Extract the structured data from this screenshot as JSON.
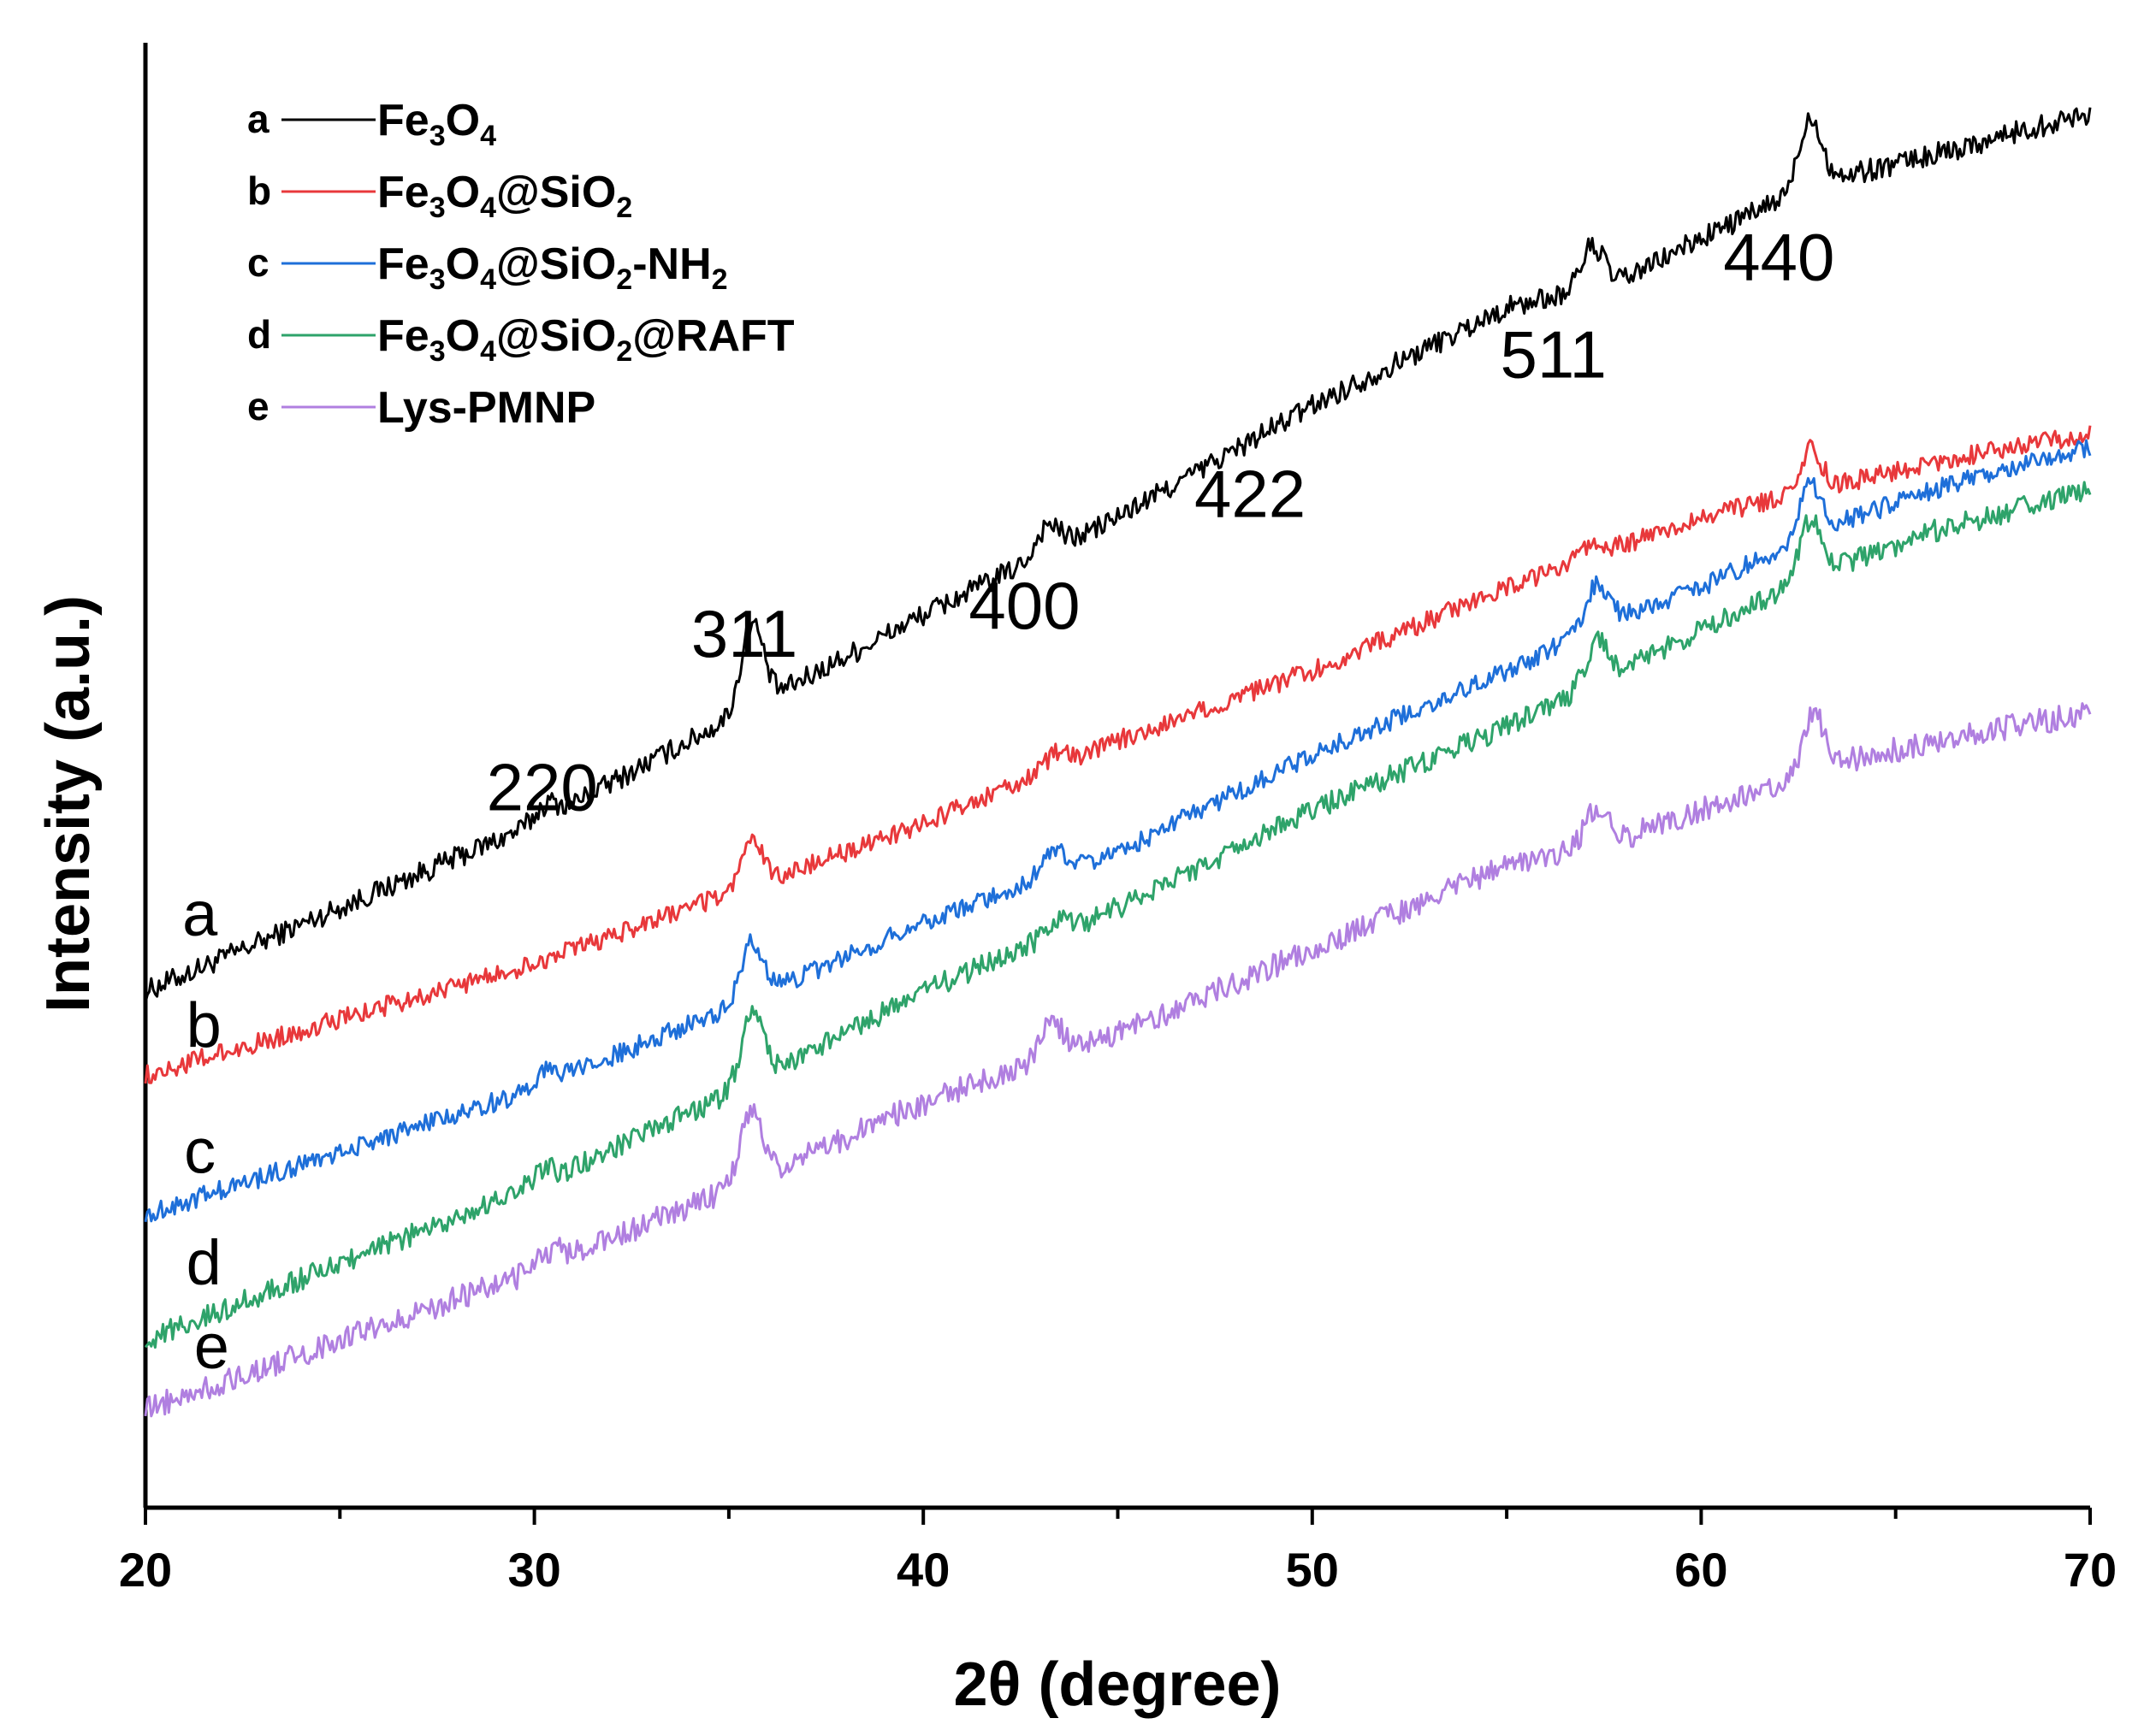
{
  "chart_data": {
    "type": "line",
    "title": "",
    "xlabel": "2θ (degree)",
    "ylabel": "Intensity (a.u.)",
    "xlim": [
      20,
      70
    ],
    "ylim": [
      0,
      105
    ],
    "x_ticks": [
      20,
      30,
      40,
      50,
      60,
      70
    ],
    "y_ticks_shown": false,
    "grid": false,
    "legend_position": "top-left",
    "series": [
      {
        "key": "a",
        "name": "Fe3O4",
        "color": "#000000",
        "legend": {
          "base": "Fe",
          "s1": "3",
          "mid": "O",
          "s2": "4",
          "rest": "",
          "s3": "",
          "tail": ""
        },
        "baseline": [
          [
            20,
            37
          ],
          [
            30,
            49
          ],
          [
            36,
            58
          ],
          [
            40,
            64
          ],
          [
            45,
            71
          ],
          [
            50,
            79
          ],
          [
            55,
            86
          ],
          [
            58,
            88
          ],
          [
            60,
            91
          ],
          [
            63,
            95
          ],
          [
            66,
            97
          ],
          [
            70,
            100
          ]
        ],
        "peaks": [
          [
            30.3,
            1.0,
            0.4
          ],
          [
            35.6,
            6.0,
            0.4
          ],
          [
            43.2,
            2.0,
            0.4
          ],
          [
            57.2,
            3.0,
            0.4
          ],
          [
            62.8,
            5.0,
            0.4
          ]
        ],
        "noise": 0.8
      },
      {
        "key": "b",
        "name": "Fe3O4@SiO2",
        "color": "#e8383b",
        "legend": {
          "base": "Fe",
          "s1": "3",
          "mid": "O",
          "s2": "4",
          "rest": "@SiO",
          "s3": "2",
          "tail": ""
        },
        "baseline": [
          [
            20,
            31
          ],
          [
            30,
            39
          ],
          [
            36,
            45
          ],
          [
            40,
            49
          ],
          [
            45,
            55
          ],
          [
            50,
            60
          ],
          [
            55,
            66
          ],
          [
            58,
            69
          ],
          [
            60,
            71
          ],
          [
            63,
            73
          ],
          [
            66,
            75
          ],
          [
            70,
            77
          ]
        ],
        "peaks": [
          [
            35.6,
            3.0,
            0.4
          ],
          [
            43.4,
            1.0,
            0.4
          ],
          [
            57.2,
            1.0,
            0.4
          ],
          [
            62.8,
            3.0,
            0.4
          ]
        ],
        "noise": 0.7
      },
      {
        "key": "c",
        "name": "Fe3O4@SiO2-NH2",
        "color": "#1e6fd9",
        "legend": {
          "base": "Fe",
          "s1": "3",
          "mid": "O",
          "s2": "4",
          "rest": "@SiO",
          "s3": "2",
          "tail": "-NH"
        },
        "baseline": [
          [
            20,
            21
          ],
          [
            30,
            30
          ],
          [
            36,
            37
          ],
          [
            40,
            42
          ],
          [
            45,
            47
          ],
          [
            50,
            54
          ],
          [
            55,
            60
          ],
          [
            58,
            64
          ],
          [
            60,
            66
          ],
          [
            63,
            70
          ],
          [
            66,
            73
          ],
          [
            70,
            76
          ]
        ],
        "peaks": [
          [
            30.3,
            1.0,
            0.4
          ],
          [
            35.6,
            4.0,
            0.4
          ],
          [
            43.3,
            2.0,
            0.4
          ],
          [
            57.3,
            3.0,
            0.4
          ],
          [
            62.8,
            3.5,
            0.4
          ]
        ],
        "noise": 0.7
      },
      {
        "key": "d",
        "name": "Fe3O4@SiO2@RAFT",
        "color": "#2ea36a",
        "legend": {
          "base": "Fe",
          "s1": "3",
          "mid": "O",
          "s2": "4",
          "rest": "@SiO",
          "s3": "2",
          "tail": "@RAFT"
        },
        "baseline": [
          [
            20,
            12
          ],
          [
            30,
            23
          ],
          [
            36,
            31
          ],
          [
            40,
            37
          ],
          [
            45,
            43
          ],
          [
            50,
            50
          ],
          [
            55,
            56
          ],
          [
            58,
            60
          ],
          [
            60,
            63
          ],
          [
            63,
            67
          ],
          [
            66,
            70
          ],
          [
            70,
            73
          ]
        ],
        "peaks": [
          [
            30.2,
            1.0,
            0.4
          ],
          [
            35.6,
            5.0,
            0.4
          ],
          [
            43.4,
            1.0,
            0.4
          ],
          [
            57.3,
            3.0,
            0.4
          ],
          [
            62.8,
            4.0,
            0.4
          ]
        ],
        "noise": 0.8
      },
      {
        "key": "e",
        "name": "Lys-PMNP",
        "color": "#b07fe0",
        "legend": {
          "base": "Lys-PMNP",
          "s1": "",
          "mid": "",
          "s2": "",
          "rest": "",
          "s3": "",
          "tail": ""
        },
        "baseline": [
          [
            20,
            7
          ],
          [
            30,
            17
          ],
          [
            36,
            24
          ],
          [
            40,
            29
          ],
          [
            45,
            34
          ],
          [
            50,
            40
          ],
          [
            55,
            46
          ],
          [
            58,
            48
          ],
          [
            60,
            50
          ],
          [
            63,
            53
          ],
          [
            66,
            55
          ],
          [
            70,
            57
          ]
        ],
        "peaks": [
          [
            30.4,
            1.0,
            0.4
          ],
          [
            35.6,
            5.0,
            0.4
          ],
          [
            43.3,
            2.5,
            0.4
          ],
          [
            57.3,
            2.5,
            0.4
          ],
          [
            62.9,
            4.0,
            0.4
          ]
        ],
        "noise": 0.9
      }
    ],
    "peak_labels": [
      {
        "text": "220",
        "x": 30.2,
        "y": 50
      },
      {
        "text": "311",
        "x": 35.4,
        "y": 61
      },
      {
        "text": "400",
        "x": 42.6,
        "y": 63
      },
      {
        "text": "422",
        "x": 48.4,
        "y": 71
      },
      {
        "text": "511",
        "x": 56.2,
        "y": 81
      },
      {
        "text": "440",
        "x": 62.0,
        "y": 88
      }
    ],
    "curve_labels": [
      {
        "text": "a",
        "x": 21.4,
        "y": 41
      },
      {
        "text": "b",
        "x": 21.5,
        "y": 33
      },
      {
        "text": "c",
        "x": 21.4,
        "y": 24
      },
      {
        "text": "d",
        "x": 21.5,
        "y": 16
      },
      {
        "text": "e",
        "x": 21.7,
        "y": 10
      }
    ]
  }
}
